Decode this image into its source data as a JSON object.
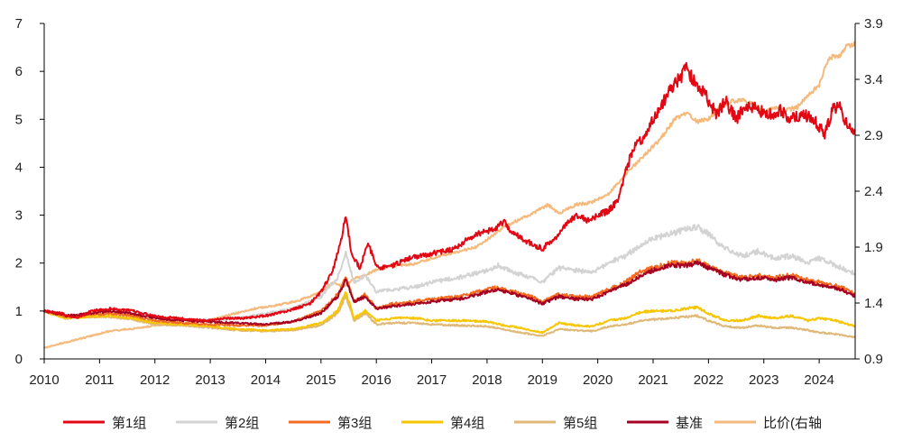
{
  "chart_data": {
    "type": "line",
    "title": "",
    "xlabel": "",
    "ylabel": "",
    "y2label": "",
    "xlim": [
      2010.0,
      2024.65
    ],
    "ylim": [
      0,
      7
    ],
    "y2lim": [
      0.9,
      3.9
    ],
    "x_ticks": [
      "2010",
      "2011",
      "2012",
      "2013",
      "2014",
      "2015",
      "2016",
      "2017",
      "2018",
      "2019",
      "2020",
      "2021",
      "2022",
      "2023",
      "2024"
    ],
    "y_ticks": [
      "0",
      "1",
      "2",
      "3",
      "4",
      "5",
      "6",
      "7"
    ],
    "y2_ticks": [
      "0.9",
      "1.4",
      "1.9",
      "2.4",
      "2.9",
      "3.4",
      "3.9"
    ],
    "grid": false,
    "legend_position": "bottom",
    "series": [
      {
        "name": "第1组",
        "color": "#e30613",
        "axis": "left",
        "x": [
          2010.0,
          2010.3,
          2010.6,
          2010.85,
          2011.2,
          2011.6,
          2012.0,
          2012.4,
          2012.9,
          2013.3,
          2013.6,
          2014.0,
          2014.4,
          2014.8,
          2015.0,
          2015.2,
          2015.35,
          2015.45,
          2015.55,
          2015.7,
          2015.85,
          2016.0,
          2016.1,
          2016.3,
          2016.6,
          2017.0,
          2017.4,
          2017.8,
          2018.1,
          2018.3,
          2018.5,
          2018.8,
          2019.0,
          2019.2,
          2019.4,
          2019.6,
          2019.8,
          2020.0,
          2020.2,
          2020.35,
          2020.5,
          2020.65,
          2020.8,
          2021.0,
          2021.15,
          2021.3,
          2021.45,
          2021.6,
          2021.75,
          2021.9,
          2022.0,
          2022.15,
          2022.3,
          2022.5,
          2022.7,
          2022.9,
          2023.1,
          2023.3,
          2023.5,
          2023.7,
          2023.9,
          2024.1,
          2024.25,
          2024.35,
          2024.5,
          2024.65
        ],
        "y": [
          1.0,
          0.95,
          0.85,
          1.0,
          1.05,
          1.0,
          0.9,
          0.85,
          0.8,
          0.85,
          0.85,
          0.9,
          1.0,
          1.15,
          1.4,
          1.8,
          2.4,
          3.0,
          2.2,
          1.9,
          2.4,
          1.95,
          1.9,
          1.95,
          2.1,
          2.2,
          2.3,
          2.6,
          2.7,
          2.85,
          2.6,
          2.4,
          2.3,
          2.5,
          2.75,
          3.0,
          2.9,
          3.0,
          3.1,
          3.3,
          3.9,
          4.4,
          4.6,
          5.0,
          5.3,
          5.6,
          5.8,
          6.05,
          5.8,
          5.6,
          5.4,
          5.1,
          5.4,
          5.0,
          5.3,
          5.2,
          5.1,
          5.2,
          5.0,
          5.1,
          5.0,
          4.7,
          5.2,
          5.3,
          4.9,
          4.75
        ]
      },
      {
        "name": "第2组",
        "color": "#d3d3d3",
        "axis": "left",
        "x": [
          2010.0,
          2010.4,
          2010.8,
          2011.2,
          2011.6,
          2012.0,
          2012.5,
          2013.0,
          2013.5,
          2014.0,
          2014.5,
          2015.0,
          2015.3,
          2015.45,
          2015.6,
          2015.8,
          2016.0,
          2016.3,
          2016.7,
          2017.0,
          2017.5,
          2018.0,
          2018.2,
          2018.5,
          2018.8,
          2019.0,
          2019.3,
          2019.6,
          2019.9,
          2020.2,
          2020.5,
          2020.8,
          2021.0,
          2021.3,
          2021.6,
          2021.8,
          2022.0,
          2022.3,
          2022.6,
          2022.9,
          2023.2,
          2023.5,
          2023.8,
          2024.0,
          2024.2,
          2024.4,
          2024.65
        ],
        "y": [
          1.0,
          0.9,
          0.95,
          1.0,
          0.95,
          0.85,
          0.82,
          0.8,
          0.85,
          0.95,
          1.05,
          1.3,
          1.7,
          2.2,
          1.6,
          1.75,
          1.4,
          1.45,
          1.5,
          1.6,
          1.7,
          1.85,
          1.95,
          1.8,
          1.7,
          1.6,
          1.9,
          1.85,
          1.8,
          2.0,
          2.15,
          2.4,
          2.5,
          2.6,
          2.7,
          2.75,
          2.6,
          2.3,
          2.15,
          2.25,
          2.1,
          2.15,
          2.0,
          2.1,
          2.0,
          1.9,
          1.78
        ]
      },
      {
        "name": "第3组",
        "color": "#f26b21",
        "axis": "left",
        "x": [
          2010.0,
          2010.4,
          2010.8,
          2011.2,
          2011.6,
          2012.0,
          2012.5,
          2013.0,
          2013.5,
          2014.0,
          2014.5,
          2015.0,
          2015.3,
          2015.45,
          2015.6,
          2015.8,
          2016.0,
          2016.3,
          2016.7,
          2017.0,
          2017.5,
          2018.0,
          2018.2,
          2018.5,
          2018.8,
          2019.0,
          2019.3,
          2019.6,
          2019.9,
          2020.2,
          2020.5,
          2020.8,
          2021.0,
          2021.3,
          2021.6,
          2021.8,
          2022.0,
          2022.3,
          2022.6,
          2022.9,
          2023.2,
          2023.5,
          2023.8,
          2024.0,
          2024.2,
          2024.4,
          2024.65
        ],
        "y": [
          1.0,
          0.88,
          0.92,
          0.95,
          0.9,
          0.8,
          0.75,
          0.72,
          0.7,
          0.7,
          0.78,
          1.0,
          1.35,
          1.7,
          1.2,
          1.35,
          1.05,
          1.15,
          1.2,
          1.25,
          1.3,
          1.45,
          1.5,
          1.4,
          1.3,
          1.2,
          1.35,
          1.3,
          1.3,
          1.45,
          1.6,
          1.85,
          1.9,
          2.0,
          2.0,
          2.05,
          1.95,
          1.8,
          1.7,
          1.75,
          1.7,
          1.75,
          1.65,
          1.6,
          1.55,
          1.5,
          1.35
        ]
      },
      {
        "name": "第4组",
        "color": "#f7c600",
        "axis": "left",
        "x": [
          2010.0,
          2010.4,
          2010.8,
          2011.2,
          2011.6,
          2012.0,
          2012.5,
          2013.0,
          2013.5,
          2014.0,
          2014.5,
          2015.0,
          2015.3,
          2015.45,
          2015.6,
          2015.8,
          2016.0,
          2016.3,
          2016.7,
          2017.0,
          2017.5,
          2018.0,
          2018.3,
          2018.6,
          2019.0,
          2019.3,
          2019.6,
          2019.9,
          2020.2,
          2020.5,
          2020.8,
          2021.0,
          2021.3,
          2021.6,
          2021.8,
          2022.0,
          2022.3,
          2022.6,
          2022.9,
          2023.2,
          2023.5,
          2023.8,
          2024.0,
          2024.3,
          2024.65
        ],
        "y": [
          1.0,
          0.85,
          0.88,
          0.9,
          0.85,
          0.75,
          0.72,
          0.68,
          0.62,
          0.6,
          0.62,
          0.75,
          1.0,
          1.4,
          0.85,
          1.0,
          0.8,
          0.85,
          0.85,
          0.8,
          0.8,
          0.78,
          0.7,
          0.65,
          0.55,
          0.75,
          0.7,
          0.68,
          0.8,
          0.85,
          0.98,
          1.0,
          1.0,
          1.05,
          1.08,
          0.95,
          0.8,
          0.8,
          0.9,
          0.85,
          0.9,
          0.8,
          0.85,
          0.8,
          0.68
        ]
      },
      {
        "name": "第5组",
        "color": "#e0b878",
        "axis": "left",
        "x": [
          2010.0,
          2010.4,
          2010.8,
          2011.2,
          2011.6,
          2012.0,
          2012.5,
          2013.0,
          2013.5,
          2014.0,
          2014.5,
          2015.0,
          2015.3,
          2015.45,
          2015.6,
          2015.8,
          2016.0,
          2016.3,
          2016.7,
          2017.0,
          2017.5,
          2018.0,
          2018.3,
          2018.6,
          2019.0,
          2019.3,
          2019.6,
          2019.9,
          2020.2,
          2020.5,
          2020.8,
          2021.0,
          2021.3,
          2021.6,
          2021.8,
          2022.0,
          2022.3,
          2022.6,
          2022.9,
          2023.2,
          2023.5,
          2023.8,
          2024.0,
          2024.3,
          2024.65
        ],
        "y": [
          1.0,
          0.85,
          0.88,
          0.88,
          0.82,
          0.72,
          0.7,
          0.65,
          0.6,
          0.58,
          0.6,
          0.7,
          0.95,
          1.3,
          0.8,
          0.95,
          0.72,
          0.75,
          0.75,
          0.72,
          0.7,
          0.68,
          0.62,
          0.55,
          0.48,
          0.62,
          0.6,
          0.58,
          0.68,
          0.72,
          0.8,
          0.82,
          0.85,
          0.88,
          0.9,
          0.8,
          0.68,
          0.65,
          0.7,
          0.65,
          0.65,
          0.6,
          0.55,
          0.52,
          0.45
        ]
      },
      {
        "name": "基准",
        "color": "#a50021",
        "axis": "left",
        "x": [
          2010.0,
          2010.4,
          2010.8,
          2011.2,
          2011.6,
          2012.0,
          2012.5,
          2013.0,
          2013.5,
          2014.0,
          2014.5,
          2015.0,
          2015.3,
          2015.45,
          2015.6,
          2015.8,
          2016.0,
          2016.3,
          2016.7,
          2017.0,
          2017.5,
          2018.0,
          2018.2,
          2018.5,
          2018.8,
          2019.0,
          2019.3,
          2019.6,
          2019.9,
          2020.2,
          2020.5,
          2020.8,
          2021.0,
          2021.3,
          2021.6,
          2021.8,
          2022.0,
          2022.3,
          2022.6,
          2022.9,
          2023.2,
          2023.5,
          2023.8,
          2024.0,
          2024.2,
          2024.4,
          2024.65
        ],
        "y": [
          1.0,
          0.9,
          0.95,
          1.0,
          0.95,
          0.85,
          0.8,
          0.78,
          0.75,
          0.72,
          0.78,
          0.95,
          1.3,
          1.65,
          1.2,
          1.3,
          1.05,
          1.1,
          1.15,
          1.2,
          1.25,
          1.4,
          1.45,
          1.35,
          1.25,
          1.15,
          1.3,
          1.25,
          1.25,
          1.4,
          1.55,
          1.75,
          1.85,
          1.95,
          1.95,
          2.0,
          1.9,
          1.75,
          1.65,
          1.7,
          1.65,
          1.7,
          1.6,
          1.55,
          1.5,
          1.45,
          1.3
        ]
      },
      {
        "name": "比价(右轴",
        "color": "#f5b97c",
        "axis": "right",
        "x": [
          2010.0,
          2010.4,
          2010.8,
          2011.2,
          2011.6,
          2012.0,
          2012.5,
          2013.0,
          2013.4,
          2013.8,
          2014.2,
          2014.6,
          2015.0,
          2015.2,
          2015.4,
          2015.6,
          2015.8,
          2016.0,
          2016.3,
          2016.7,
          2017.0,
          2017.4,
          2017.8,
          2018.1,
          2018.3,
          2018.6,
          2018.9,
          2019.1,
          2019.3,
          2019.6,
          2019.9,
          2020.2,
          2020.5,
          2020.8,
          2021.1,
          2021.4,
          2021.6,
          2021.8,
          2022.0,
          2022.2,
          2022.4,
          2022.6,
          2022.8,
          2023.0,
          2023.2,
          2023.4,
          2023.6,
          2023.8,
          2024.0,
          2024.1,
          2024.2,
          2024.35,
          2024.5,
          2024.65
        ],
        "y": [
          1.0,
          1.05,
          1.1,
          1.15,
          1.17,
          1.2,
          1.22,
          1.25,
          1.3,
          1.35,
          1.38,
          1.42,
          1.5,
          1.58,
          1.55,
          1.62,
          1.65,
          1.7,
          1.73,
          1.75,
          1.8,
          1.85,
          1.9,
          2.0,
          2.08,
          2.15,
          2.22,
          2.28,
          2.2,
          2.28,
          2.3,
          2.38,
          2.55,
          2.7,
          2.85,
          3.05,
          3.1,
          3.02,
          3.05,
          3.15,
          3.2,
          3.22,
          3.18,
          3.1,
          3.15,
          3.12,
          3.15,
          3.25,
          3.35,
          3.5,
          3.6,
          3.6,
          3.7,
          3.72
        ]
      }
    ]
  }
}
